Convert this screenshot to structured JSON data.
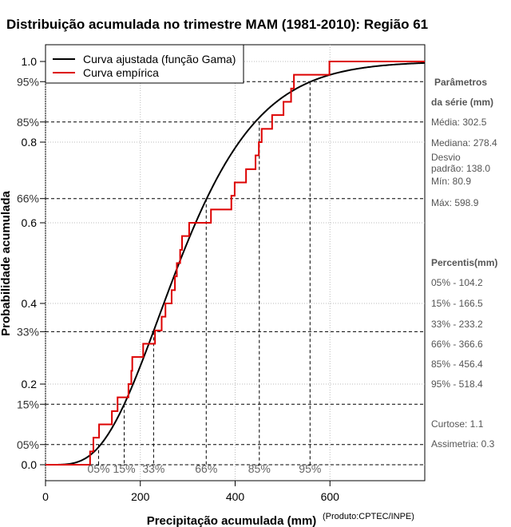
{
  "chart_data": {
    "type": "line",
    "title": "Distribuição acumulada no trimestre MAM (1981-2010): Região 61",
    "xlabel": "Precipitação acumulada (mm)",
    "ylabel": "Probabilidade acumulada",
    "xlim": [
      0,
      800
    ],
    "ylim": [
      0,
      1
    ],
    "x_ticks": [
      0,
      200,
      400,
      600
    ],
    "y_ticks": [
      0.0,
      0.2,
      0.4,
      0.6,
      0.8,
      1.0
    ],
    "y_tick_labels": [
      "0.0",
      "0.2",
      "0.4",
      "0.6",
      "0.8",
      "1.0"
    ],
    "percentile_ticks": [
      {
        "label": "05%",
        "p": 0.05
      },
      {
        "label": "15%",
        "p": 0.15
      },
      {
        "label": "33%",
        "p": 0.33
      },
      {
        "label": "66%",
        "p": 0.66
      },
      {
        "label": "85%",
        "p": 0.85
      },
      {
        "label": "95%",
        "p": 0.95
      }
    ],
    "x_percentile_marks": [
      {
        "label": "05%",
        "x": 112
      },
      {
        "label": "15%",
        "x": 166
      },
      {
        "label": "33%",
        "x": 228
      },
      {
        "label": "66%",
        "x": 339
      },
      {
        "label": "85%",
        "x": 451
      },
      {
        "label": "95%",
        "x": 558
      }
    ],
    "series": [
      {
        "name": "Curva ajustada (função Gama)",
        "color": "#000000",
        "kind": "gamma_cdf",
        "mean": 302.5,
        "sd": 138.0
      },
      {
        "name": "Curva empírica",
        "color": "#dd0000",
        "kind": "step",
        "x": [
          0,
          80.9,
          94,
          101,
          113,
          140,
          152,
          175,
          181,
          183,
          206,
          227,
          231,
          245,
          253,
          261,
          266,
          273,
          277,
          284,
          288,
          303,
          349,
          392,
          399,
          423,
          443,
          450,
          456,
          478,
          502,
          518,
          524,
          598.9,
          800
        ],
        "y": [
          0.0,
          0.0,
          0.033,
          0.067,
          0.1,
          0.133,
          0.167,
          0.2,
          0.233,
          0.267,
          0.3,
          0.3,
          0.333,
          0.367,
          0.4,
          0.4,
          0.433,
          0.467,
          0.5,
          0.533,
          0.567,
          0.6,
          0.633,
          0.667,
          0.7,
          0.733,
          0.767,
          0.8,
          0.833,
          0.867,
          0.9,
          0.933,
          0.967,
          1.0,
          1.0
        ]
      }
    ],
    "legend": {
      "position": "top-left"
    },
    "grid": true,
    "source_note": "(Produto:CPTEC/INPE)"
  },
  "side_panel": {
    "params_heading_1": "Parâmetros",
    "params_heading_2": "da série (mm)",
    "media": "Média: 302.5",
    "mediana": "Mediana: 278.4",
    "desvio_1": "Desvio",
    "desvio_2": "padrão: 138.0",
    "min": "Mín: 80.9",
    "max": "Máx: 598.9",
    "percentis_heading": "Percentis(mm)",
    "p05": "05% - 104.2",
    "p15": "15% - 166.5",
    "p33": "33% - 233.2",
    "p66": "66% - 366.6",
    "p85": "85% - 456.4",
    "p95": "95% - 518.4",
    "curtose": "Curtose: 1.1",
    "assimetria": "Assimetria: 0.3"
  }
}
